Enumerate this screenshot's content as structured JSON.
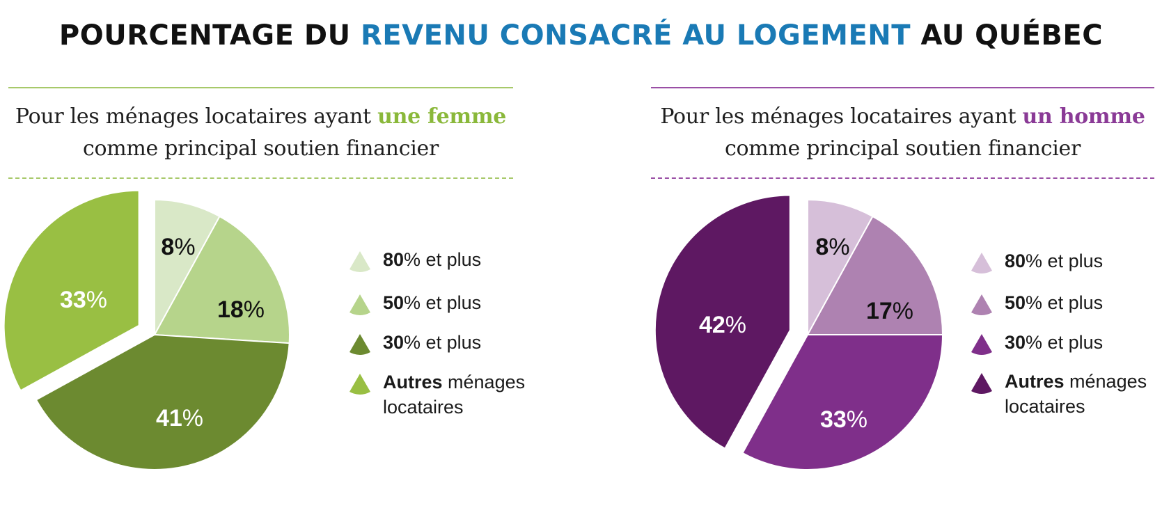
{
  "title": {
    "part1": "POURCENTAGE DU ",
    "part2": "REVENU CONSACRÉ AU LOGEMENT",
    "part3": " AU QUÉBEC"
  },
  "colors": {
    "title_highlight": "#1a7ab5",
    "female_accent": "#8ab83a",
    "male_accent": "#8a3a96"
  },
  "chart_data": [
    {
      "type": "pie",
      "subtitle": {
        "before": "Pour les ménages locataires ayant ",
        "emphasis": "une femme",
        "line2": "comme principal soutien financier"
      },
      "slices": [
        {
          "label_bold": "80",
          "label_rest": "% et plus",
          "value": 8,
          "color": "#d9e8c7",
          "text_color": "#111111"
        },
        {
          "label_bold": "50",
          "label_rest": "% et plus",
          "value": 18,
          "color": "#b6d48b",
          "text_color": "#111111"
        },
        {
          "label_bold": "30",
          "label_rest": "% et plus",
          "value": 41,
          "color": "#6c8a30",
          "text_color": "#ffffff"
        },
        {
          "label_bold": "Autres",
          "label_rest": " ménages",
          "label_line2": "locataires",
          "value": 33,
          "color": "#99bf43",
          "text_color": "#ffffff",
          "exploded": true
        }
      ]
    },
    {
      "type": "pie",
      "subtitle": {
        "before": "Pour les ménages locataires ayant ",
        "emphasis": "un homme",
        "line2": "comme principal soutien financier"
      },
      "slices": [
        {
          "label_bold": "80",
          "label_rest": "% et plus",
          "value": 8,
          "color": "#d6bfd9",
          "text_color": "#111111"
        },
        {
          "label_bold": "50",
          "label_rest": "% et plus",
          "value": 17,
          "color": "#ae82b1",
          "text_color": "#111111"
        },
        {
          "label_bold": "30",
          "label_rest": "% et plus",
          "value": 33,
          "color": "#7f2f8a",
          "text_color": "#ffffff"
        },
        {
          "label_bold": "Autres",
          "label_rest": " ménages",
          "label_line2": "locataires",
          "value": 42,
          "color": "#5e1862",
          "text_color": "#ffffff",
          "exploded": true
        }
      ]
    }
  ]
}
